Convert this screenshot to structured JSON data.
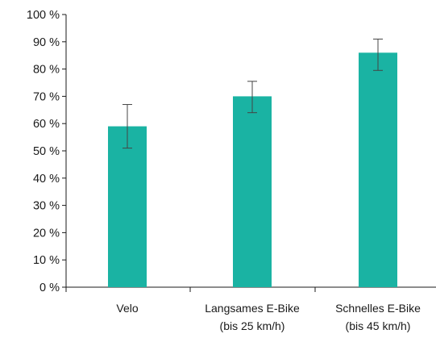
{
  "chart_data": {
    "type": "bar",
    "title": "",
    "xlabel": "",
    "ylabel": "",
    "ylim": [
      0,
      100
    ],
    "y_ticks": [
      0,
      10,
      20,
      30,
      40,
      50,
      60,
      70,
      80,
      90,
      100
    ],
    "y_tick_suffix": " %",
    "y_tick_labels": [
      "0 %",
      "10 %",
      "20 %",
      "30 %",
      "40 %",
      "50 %",
      "60 %",
      "70 %",
      "80 %",
      "90 %",
      "100 %"
    ],
    "grid": false,
    "legend": "none",
    "categories": [
      [
        "Velo"
      ],
      [
        "Langsames E-Bike",
        "(bis 25 km/h)"
      ],
      [
        "Schnelles E-Bike",
        "(bis 45 km/h)"
      ]
    ],
    "values": [
      59,
      70,
      86
    ],
    "error_bars": [
      {
        "low": 51,
        "high": 67
      },
      {
        "low": 64,
        "high": 75.5
      },
      {
        "low": 79.5,
        "high": 91
      }
    ],
    "bar_color": "#1ab3a3",
    "axis_color": "#1a1a1a",
    "error_bar_color": "#444444"
  }
}
